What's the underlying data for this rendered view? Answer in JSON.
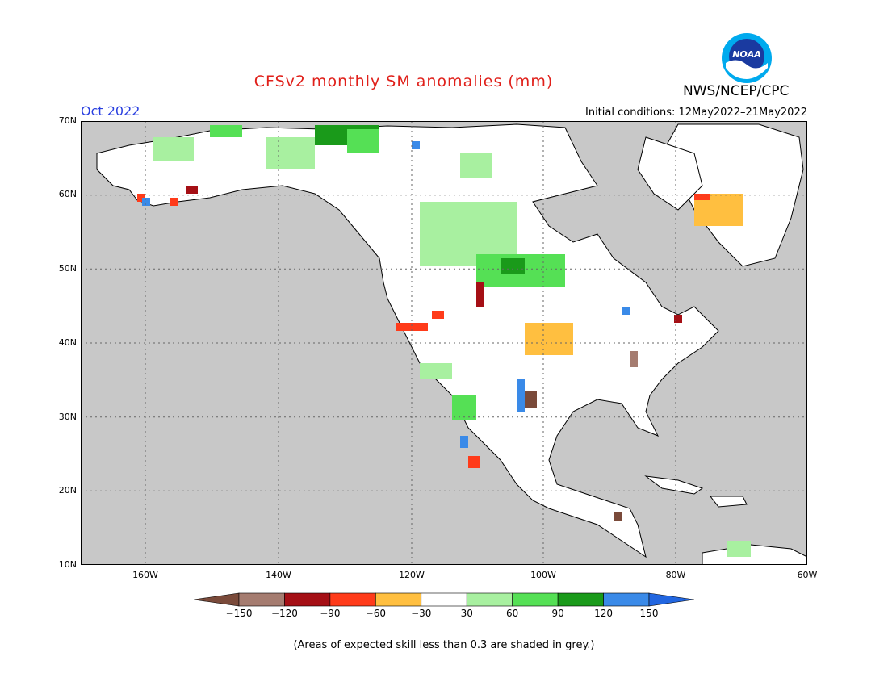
{
  "title": "CFSv2 monthly SM anomalies (mm)",
  "org": "NWS/NCEP/CPC",
  "logo_text": "NOAA",
  "month": "Oct 2022",
  "init_conditions": "Initial conditions: 12May2022–21May2022",
  "colors": {
    "title": "#e0201a",
    "month": "#2a40e0"
  },
  "lat_labels": [
    "70N",
    "60N",
    "50N",
    "40N",
    "30N",
    "20N",
    "10N"
  ],
  "lon_labels": [
    "160W",
    "140W",
    "120W",
    "100W",
    "80W",
    "60W"
  ],
  "colorbar": {
    "labels": [
      "−150",
      "−120",
      "−90",
      "−60",
      "−30",
      "30",
      "60",
      "90",
      "120",
      "150"
    ],
    "colors": [
      "#7a4a3a",
      "#a57c70",
      "#a50f15",
      "#ff3b1a",
      "#ffbf40",
      "#ffffff",
      "#a8f0a0",
      "#55e055",
      "#1a9a1a",
      "#3a8ae8",
      "#2266e0"
    ]
  },
  "note": "(Areas of expected skill less than 0.3 are shaded in grey.)"
}
